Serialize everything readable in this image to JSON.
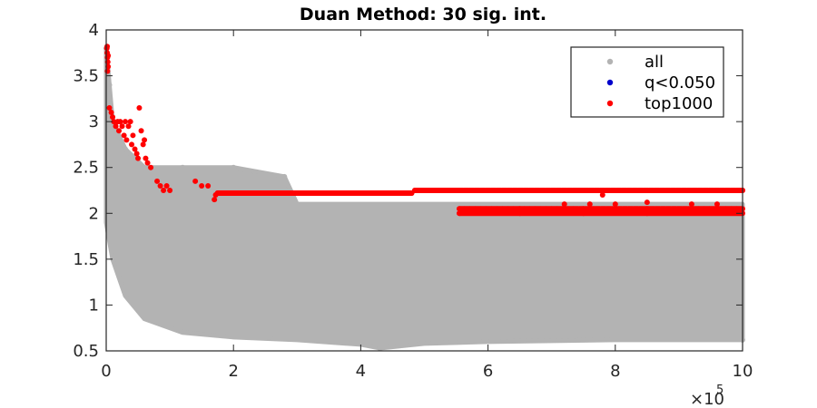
{
  "chart_data": {
    "type": "scatter",
    "title": "Duan Method: 30 sig. int.",
    "xlabel": "",
    "ylabel": "",
    "x_multiplier_label": "×10",
    "x_multiplier_exponent": "5",
    "xlim": [
      0,
      1000000
    ],
    "ylim": [
      0.5,
      4
    ],
    "x_ticks": [
      0,
      200000,
      400000,
      600000,
      800000,
      1000000
    ],
    "x_tick_labels": [
      "0",
      "2",
      "4",
      "6",
      "8",
      "10"
    ],
    "y_ticks": [
      0.5,
      1,
      1.5,
      2,
      2.5,
      3,
      3.5,
      4
    ],
    "y_tick_labels": [
      "0.5",
      "1",
      "1.5",
      "2",
      "2.5",
      "3",
      "3.5",
      "4"
    ],
    "grid": false,
    "legend_position": "top-right",
    "series": [
      {
        "name": "all",
        "color": "#b3b3b3",
        "kind": "dense-band",
        "upper_envelope": [
          [
            0,
            3.8
          ],
          [
            10000,
            3.0
          ],
          [
            30000,
            2.7
          ],
          [
            60000,
            2.5
          ],
          [
            120000,
            2.5
          ],
          [
            200000,
            2.5
          ],
          [
            280000,
            2.4
          ],
          [
            300000,
            2.1
          ],
          [
            600000,
            2.1
          ],
          [
            800000,
            2.1
          ],
          [
            1000000,
            2.1
          ]
        ],
        "lower_envelope": [
          [
            0,
            1.9
          ],
          [
            10000,
            1.5
          ],
          [
            30000,
            1.1
          ],
          [
            60000,
            0.85
          ],
          [
            120000,
            0.7
          ],
          [
            200000,
            0.65
          ],
          [
            300000,
            0.62
          ],
          [
            400000,
            0.57
          ],
          [
            430000,
            0.53
          ],
          [
            500000,
            0.58
          ],
          [
            600000,
            0.6
          ],
          [
            800000,
            0.62
          ],
          [
            1000000,
            0.62
          ]
        ],
        "values": [
          [
            0,
            3.8
          ],
          [
            5000,
            3.4
          ],
          [
            10000,
            3.05
          ],
          [
            30000,
            2.7
          ],
          [
            60000,
            2.5
          ],
          [
            120000,
            2.5
          ],
          [
            200000,
            2.5
          ],
          [
            280000,
            2.4
          ],
          [
            430000,
            0.53
          ],
          [
            1000000,
            0.62
          ]
        ]
      },
      {
        "name": "q<0.050",
        "color": "#0000cc",
        "values": []
      },
      {
        "name": "top1000",
        "color": "#ff0000",
        "values": [
          [
            1000,
            3.8
          ],
          [
            1500,
            3.75
          ],
          [
            2000,
            3.7
          ],
          [
            2500,
            3.65
          ],
          [
            3000,
            3.6
          ],
          [
            2000,
            3.55
          ],
          [
            1500,
            3.82
          ],
          [
            3000,
            3.72
          ],
          [
            5000,
            3.15
          ],
          [
            8000,
            3.1
          ],
          [
            10000,
            3.05
          ],
          [
            12000,
            3.0
          ],
          [
            15000,
            2.95
          ],
          [
            18000,
            3.0
          ],
          [
            20000,
            2.9
          ],
          [
            22000,
            3.0
          ],
          [
            25000,
            2.95
          ],
          [
            28000,
            2.85
          ],
          [
            30000,
            3.0
          ],
          [
            32000,
            2.8
          ],
          [
            35000,
            2.95
          ],
          [
            38000,
            3.0
          ],
          [
            40000,
            2.75
          ],
          [
            42000,
            2.85
          ],
          [
            45000,
            2.7
          ],
          [
            48000,
            2.65
          ],
          [
            50000,
            2.6
          ],
          [
            52000,
            3.15
          ],
          [
            55000,
            2.9
          ],
          [
            58000,
            2.75
          ],
          [
            60000,
            2.8
          ],
          [
            62000,
            2.6
          ],
          [
            65000,
            2.55
          ],
          [
            70000,
            2.5
          ],
          [
            80000,
            2.35
          ],
          [
            85000,
            2.3
          ],
          [
            90000,
            2.25
          ],
          [
            95000,
            2.3
          ],
          [
            100000,
            2.25
          ],
          [
            140000,
            2.35
          ],
          [
            150000,
            2.3
          ],
          [
            160000,
            2.3
          ],
          [
            170000,
            2.15
          ],
          [
            172000,
            2.2
          ],
          [
            175000,
            2.22
          ],
          [
            250000,
            2.22
          ],
          [
            350000,
            2.22
          ],
          [
            480000,
            2.22
          ],
          [
            485000,
            2.25
          ],
          [
            600000,
            2.25
          ],
          [
            750000,
            2.25
          ],
          [
            900000,
            2.25
          ],
          [
            1000000,
            2.25
          ],
          [
            555000,
            2.05
          ],
          [
            650000,
            2.05
          ],
          [
            750000,
            2.05
          ],
          [
            850000,
            2.05
          ],
          [
            1000000,
            2.05
          ],
          [
            555000,
            2.0
          ],
          [
            650000,
            2.0
          ],
          [
            750000,
            2.0
          ],
          [
            850000,
            2.0
          ],
          [
            1000000,
            2.0
          ],
          [
            720000,
            2.1
          ],
          [
            760000,
            2.1
          ],
          [
            780000,
            2.2
          ],
          [
            800000,
            2.1
          ],
          [
            850000,
            2.12
          ],
          [
            920000,
            2.1
          ],
          [
            960000,
            2.1
          ]
        ]
      }
    ]
  }
}
